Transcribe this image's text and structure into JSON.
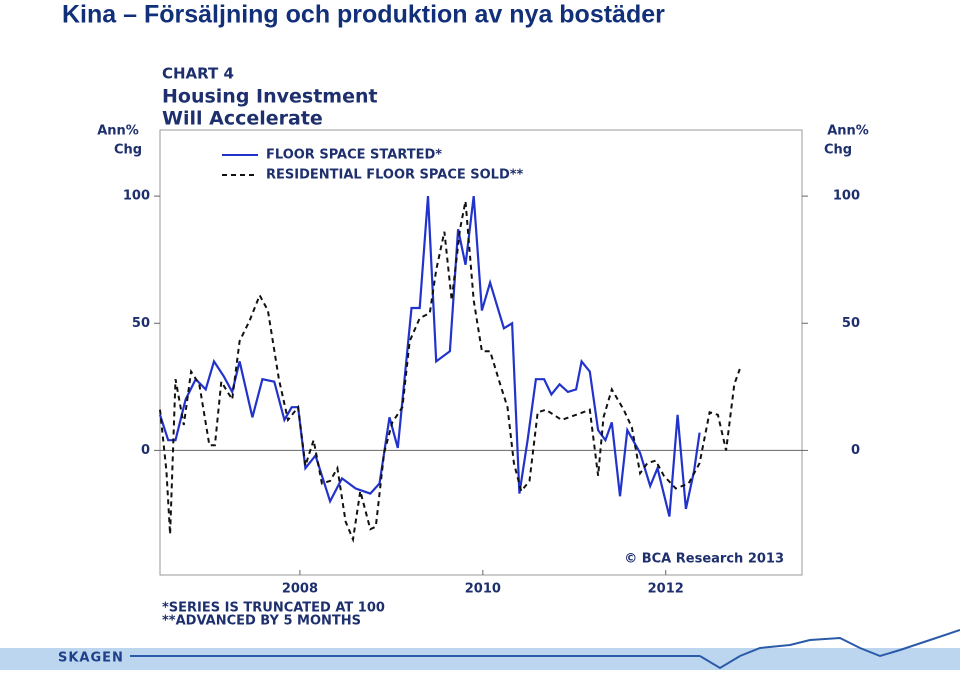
{
  "slide_title": "Kina – Försäljning och produktion av nya bostäder",
  "footer_logo": "SKAGEN",
  "chart_data": {
    "type": "line",
    "chart_label": "CHART 4",
    "title": "Housing Investment",
    "subtitle": "Will Accelerate",
    "y_label": [
      "Ann%",
      "Chg"
    ],
    "y2_label": [
      "Ann%",
      "Chg"
    ],
    "credit": "© BCA Research 2013",
    "footnotes": [
      "*SERIES IS TRUNCATED AT 100",
      "**ADVANCED BY 5 MONTHS"
    ],
    "xlim": [
      2006.47,
      2013.49
    ],
    "xticks": [
      2008,
      2010,
      2012
    ],
    "ylim": [
      -49,
      126
    ],
    "yticks": [
      0,
      50,
      100
    ],
    "y2lim": [
      -49,
      126
    ],
    "y2ticks": [
      0,
      50,
      100
    ],
    "grid": false,
    "series": [
      {
        "name": "FLOOR SPACE STARTED*",
        "color": "#2233cc",
        "dash": false,
        "x": [
          2006.47,
          2006.56,
          2006.64,
          2006.75,
          2006.86,
          2006.97,
          2007.06,
          2007.17,
          2007.26,
          2007.34,
          2007.48,
          2007.59,
          2007.72,
          2007.83,
          2007.91,
          2007.98,
          2008.06,
          2008.17,
          2008.33,
          2008.46,
          2008.61,
          2008.77,
          2008.87,
          2008.98,
          2009.07,
          2009.22,
          2009.31,
          2009.4,
          2009.49,
          2009.64,
          2009.73,
          2009.81,
          2009.9,
          2009.99,
          2010.08,
          2010.23,
          2010.32,
          2010.4,
          2010.49,
          2010.58,
          2010.67,
          2010.75,
          2010.84,
          2010.93,
          2011.02,
          2011.08,
          2011.17,
          2011.26,
          2011.34,
          2011.41,
          2011.5,
          2011.58,
          2011.72,
          2011.83,
          2011.91,
          2012.04,
          2012.13,
          2012.22,
          2012.31,
          2012.37
        ],
        "values": [
          14,
          4,
          4,
          20,
          28,
          24,
          35,
          29,
          23,
          35,
          13,
          28,
          27,
          12,
          17,
          17,
          -7,
          -2,
          -20,
          -11,
          -15,
          -17,
          -13,
          13,
          1,
          56,
          56,
          100,
          35,
          39,
          87,
          73,
          100,
          55,
          66,
          48,
          50,
          -17,
          4,
          28,
          28,
          22,
          26,
          23,
          24,
          35,
          31,
          8,
          4,
          11,
          -18,
          8,
          -1,
          -14,
          -7,
          -26,
          14,
          -23,
          -8,
          7
        ]
      },
      {
        "name": "RESIDENTIAL FLOOR SPACE SOLD**",
        "color": "#111111",
        "dash": true,
        "x": [
          2006.47,
          2006.54,
          2006.58,
          2006.64,
          2006.73,
          2006.81,
          2006.9,
          2007.01,
          2007.07,
          2007.14,
          2007.26,
          2007.34,
          2007.45,
          2007.56,
          2007.65,
          2007.77,
          2007.87,
          2007.98,
          2008.06,
          2008.15,
          2008.24,
          2008.33,
          2008.41,
          2008.5,
          2008.58,
          2008.66,
          2008.77,
          2008.83,
          2008.92,
          2009.01,
          2009.12,
          2009.2,
          2009.31,
          2009.42,
          2009.49,
          2009.58,
          2009.66,
          2009.75,
          2009.81,
          2009.9,
          2009.99,
          2010.08,
          2010.19,
          2010.27,
          2010.34,
          2010.42,
          2010.51,
          2010.6,
          2010.69,
          2010.86,
          2011.02,
          2011.17,
          2011.26,
          2011.32,
          2011.41,
          2011.54,
          2011.63,
          2011.72,
          2011.8,
          2011.89,
          2011.98,
          2012.11,
          2012.25,
          2012.37,
          2012.48,
          2012.57,
          2012.66,
          2012.75,
          2012.81
        ],
        "values": [
          16,
          -8,
          -33,
          28,
          10,
          31,
          26,
          2,
          2,
          27,
          20,
          43,
          51,
          61,
          55,
          28,
          12,
          17,
          -6,
          4,
          -13,
          -12,
          -7,
          -28,
          -35,
          -16,
          -31,
          -30,
          -1,
          11,
          17,
          43,
          52,
          54,
          71,
          86,
          59,
          87,
          98,
          59,
          39,
          39,
          26,
          17,
          -5,
          -16,
          -12,
          15,
          16,
          12,
          14,
          16,
          -10,
          13,
          24,
          16,
          9,
          -9,
          -5,
          -4,
          -10,
          -15,
          -13,
          -5,
          15,
          14,
          0,
          26,
          32
        ]
      }
    ]
  }
}
